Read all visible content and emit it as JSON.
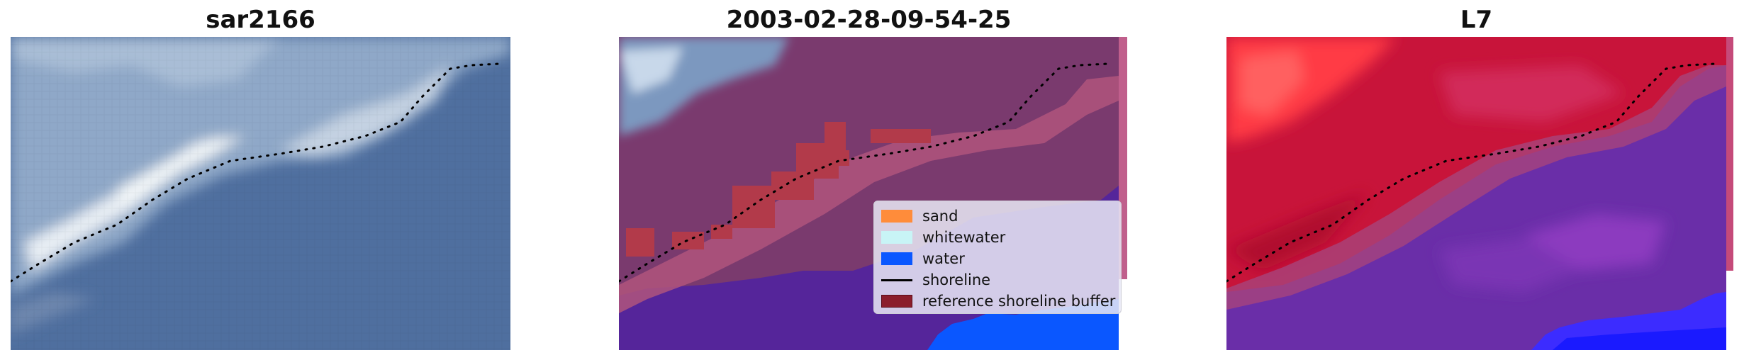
{
  "panels": [
    {
      "title": "sar2166"
    },
    {
      "title": "2003-02-28-09-54-25"
    },
    {
      "title": "L7"
    }
  ],
  "legend": {
    "items": [
      {
        "label": "sand",
        "color": "#ff8c3a",
        "kind": "patch"
      },
      {
        "label": "whitewater",
        "color": "#c8f4f6",
        "kind": "patch"
      },
      {
        "label": "water",
        "color": "#0a57ff",
        "kind": "patch"
      },
      {
        "label": "shoreline",
        "color": "#000000",
        "kind": "line"
      },
      {
        "label": "reference shoreline buffer",
        "color": "#8b1e2c",
        "kind": "patch"
      }
    ]
  },
  "colors": {
    "sea_rgb": "#4f6f9f",
    "land_overlay": "#7a3a6e",
    "water_overlay": "#55259a",
    "water_blue": "#0a57ff",
    "buffer_red": "#b23a4a",
    "l7_land_red": "#c8143a",
    "l7_water_purple": "#6a2ea8",
    "shoreline_dots": "#000000"
  }
}
